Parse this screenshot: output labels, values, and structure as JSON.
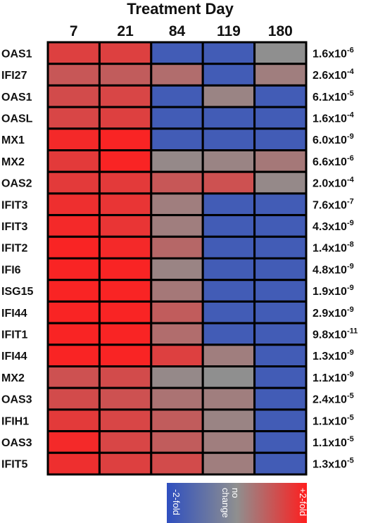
{
  "chart_data": {
    "type": "heatmap",
    "title": "Treatment Day",
    "x_labels": [
      "7",
      "21",
      "84",
      "119",
      "180"
    ],
    "rows": [
      {
        "gene": "OAS1",
        "p_base": "1.6x10",
        "p_exp": "-6",
        "values": [
          1.4,
          1.4,
          -1.6,
          -1.6,
          0.0
        ]
      },
      {
        "gene": "IFI27",
        "p_base": "2.6x10",
        "p_exp": "-4",
        "values": [
          1.0,
          0.9,
          0.6,
          -1.6,
          0.3
        ]
      },
      {
        "gene": "OAS1",
        "p_base": "6.1x10",
        "p_exp": "-5",
        "values": [
          1.2,
          1.3,
          -1.6,
          0.2,
          -1.6
        ]
      },
      {
        "gene": "OASL",
        "p_base": "1.6x10",
        "p_exp": "-4",
        "values": [
          1.3,
          1.4,
          -1.6,
          -1.6,
          -1.6
        ]
      },
      {
        "gene": "MX1",
        "p_base": "6.0x10",
        "p_exp": "-9",
        "values": [
          1.8,
          1.9,
          -1.6,
          -1.6,
          -1.6
        ]
      },
      {
        "gene": "MX2",
        "p_base": "6.6x10",
        "p_exp": "-6",
        "values": [
          1.5,
          1.9,
          0.1,
          0.2,
          0.4
        ]
      },
      {
        "gene": "OAS2",
        "p_base": "2.0x10",
        "p_exp": "-4",
        "values": [
          1.5,
          1.5,
          1.0,
          1.1,
          0.1
        ]
      },
      {
        "gene": "IFIT3",
        "p_base": "7.6x10",
        "p_exp": "-7",
        "values": [
          1.7,
          1.6,
          0.3,
          -1.6,
          -1.6
        ]
      },
      {
        "gene": "IFIT3",
        "p_base": "4.3x10",
        "p_exp": "-9",
        "values": [
          1.8,
          1.6,
          0.3,
          -1.6,
          -1.6
        ]
      },
      {
        "gene": "IFIT2",
        "p_base": "1.4x10",
        "p_exp": "-8",
        "values": [
          1.9,
          1.8,
          0.7,
          -1.6,
          -1.6
        ]
      },
      {
        "gene": "IFI6",
        "p_base": "4.8x10",
        "p_exp": "-9",
        "values": [
          1.9,
          1.9,
          0.2,
          -1.6,
          -1.6
        ]
      },
      {
        "gene": "ISG15",
        "p_base": "1.9x10",
        "p_exp": "-9",
        "values": [
          1.9,
          1.9,
          0.4,
          -1.6,
          -1.6
        ]
      },
      {
        "gene": "IFI44",
        "p_base": "2.9x10",
        "p_exp": "-9",
        "values": [
          1.9,
          1.9,
          0.9,
          -1.6,
          -1.6
        ]
      },
      {
        "gene": "IFIT1",
        "p_base": "9.8x10",
        "p_exp": "-11",
        "values": [
          1.9,
          1.9,
          0.6,
          -1.6,
          -1.6
        ]
      },
      {
        "gene": "IFI44",
        "p_base": "1.3x10",
        "p_exp": "-9",
        "values": [
          1.9,
          1.9,
          1.4,
          0.3,
          -1.6
        ]
      },
      {
        "gene": "MX2",
        "p_base": "1.1x10",
        "p_exp": "-9",
        "values": [
          1.1,
          1.2,
          0.1,
          0.0,
          -1.6
        ]
      },
      {
        "gene": "OAS3",
        "p_base": "2.4x10",
        "p_exp": "-5",
        "values": [
          1.2,
          1.1,
          0.5,
          0.3,
          -1.6
        ]
      },
      {
        "gene": "IFIH1",
        "p_base": "1.1x10",
        "p_exp": "-5",
        "values": [
          1.5,
          1.3,
          0.9,
          0.2,
          -1.6
        ]
      },
      {
        "gene": "OAS3",
        "p_base": "1.1x10",
        "p_exp": "-5",
        "values": [
          1.8,
          1.3,
          0.9,
          0.3,
          -1.6
        ]
      },
      {
        "gene": "IFIT5",
        "p_base": "1.3x10",
        "p_exp": "-5",
        "values": [
          1.7,
          1.4,
          1.2,
          0.3,
          -1.6
        ]
      }
    ],
    "legend": {
      "low_label": "-2-fold",
      "mid_label_1": "no",
      "mid_label_2": "change",
      "high_label": "+2-fold",
      "low_value": -2,
      "high_value": 2
    },
    "colors": {
      "low": "#2f4fc0",
      "mid": "#8f8f8f",
      "high": "#ff1e1e"
    }
  }
}
